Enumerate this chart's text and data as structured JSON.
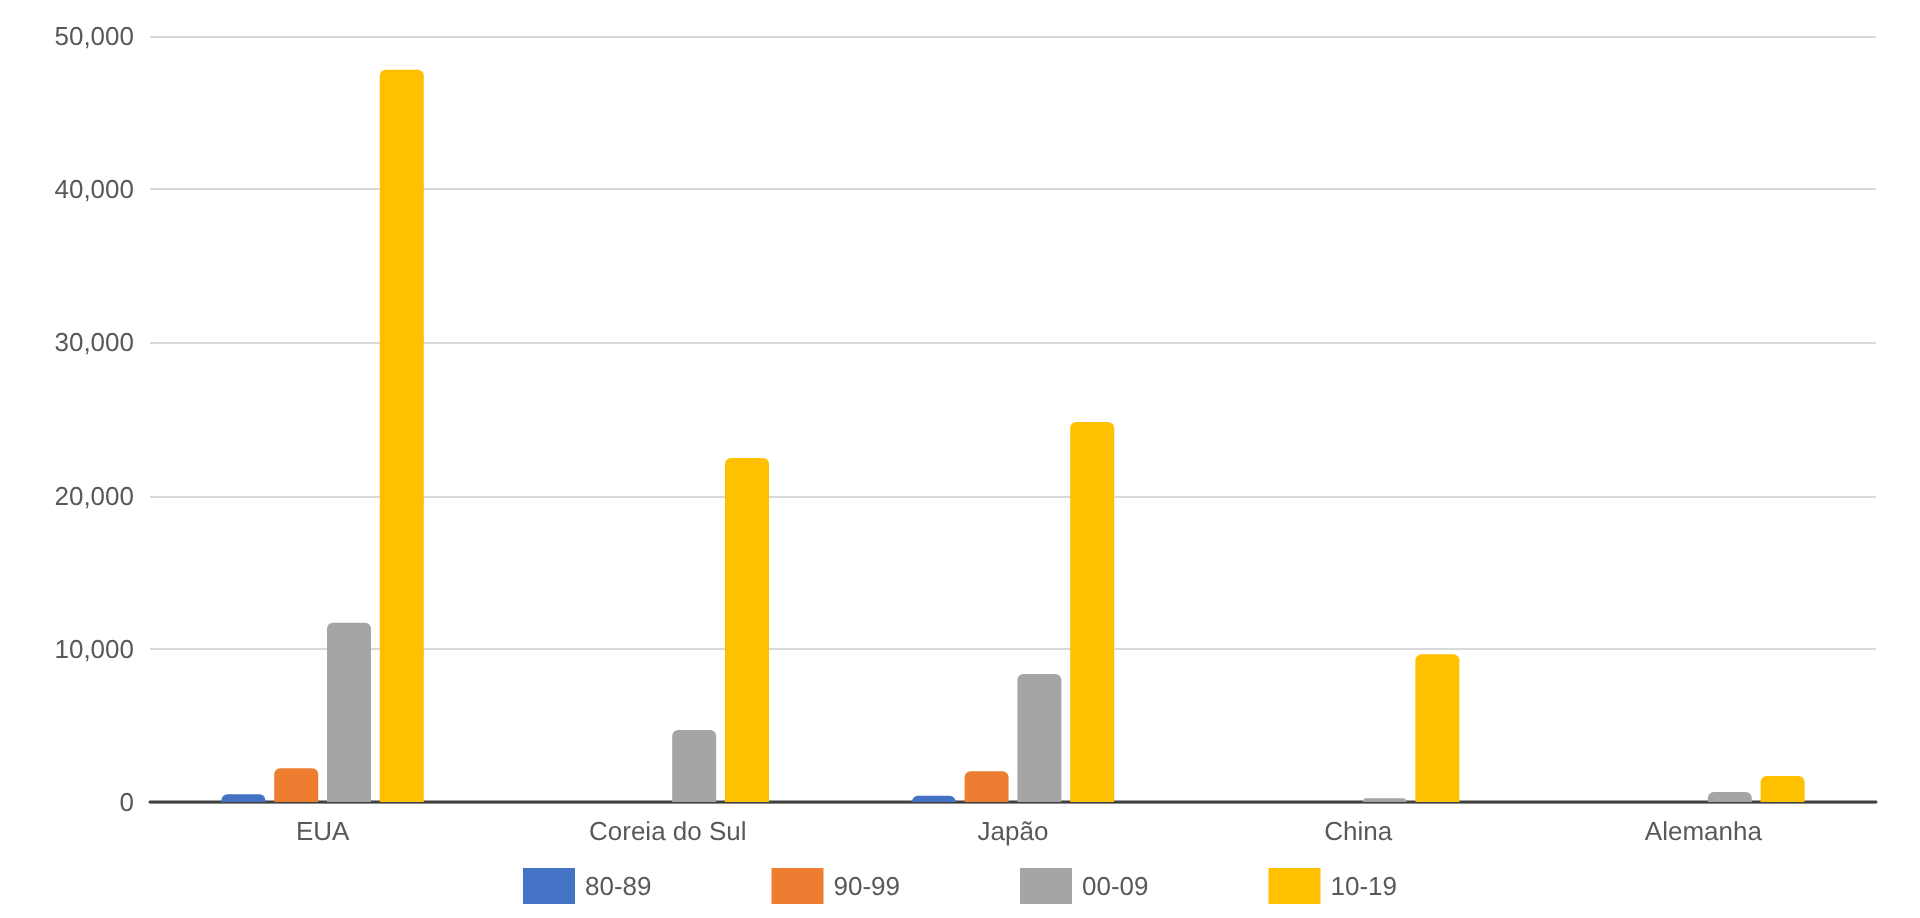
{
  "chart_data": {
    "type": "bar",
    "categories": [
      "EUA",
      "Coreia do Sul",
      "Japão",
      "China",
      "Alemanha"
    ],
    "series": [
      {
        "name": "80-89",
        "color": "#4472c4",
        "values": [
          500,
          0,
          400,
          0,
          0
        ]
      },
      {
        "name": "90-99",
        "color": "#ed7d31",
        "values": [
          2200,
          0,
          2000,
          0,
          0
        ]
      },
      {
        "name": "00-09",
        "color": "#a5a5a5",
        "values": [
          11700,
          4700,
          8350,
          250,
          650
        ]
      },
      {
        "name": "10-19",
        "color": "#ffc000",
        "values": [
          47800,
          22450,
          24800,
          9650,
          1700
        ]
      }
    ],
    "ylim": [
      0,
      50000
    ],
    "yticks": [
      {
        "value": 0,
        "label": "0"
      },
      {
        "value": 10000,
        "label": "10,000"
      },
      {
        "value": 20000,
        "label": "20,000"
      },
      {
        "value": 30000,
        "label": "30,000"
      },
      {
        "value": 40000,
        "label": "40,000"
      },
      {
        "value": 50000,
        "label": "50,000"
      }
    ],
    "grid": "y",
    "legend": "bottom"
  }
}
